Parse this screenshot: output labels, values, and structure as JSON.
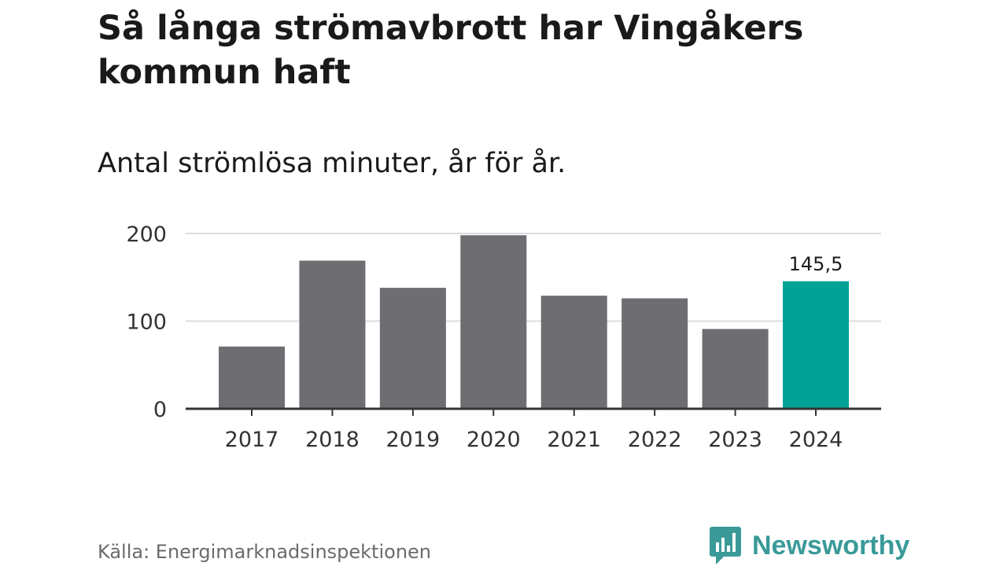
{
  "header": {
    "title": "Så långa strömavbrott har Vingåkers kommun haft",
    "subtitle": "Antal strömlösa minuter, år för år."
  },
  "footer": {
    "source": "Källa: Energimarknadsinspektionen",
    "brand_name": "Newsworthy",
    "brand_icon": "bar-chart-logo-icon",
    "brand_color": "#3a9a98"
  },
  "chart_data": {
    "type": "bar",
    "title": "Så långa strömavbrott har Vingåkers kommun haft",
    "subtitle": "Antal strömlösa minuter, år för år.",
    "categories": [
      "2017",
      "2018",
      "2019",
      "2020",
      "2021",
      "2022",
      "2023",
      "2024"
    ],
    "values": [
      71,
      169,
      138,
      198,
      129,
      126,
      91,
      145.5
    ],
    "data_labels": [
      null,
      null,
      null,
      null,
      null,
      null,
      null,
      "145,5"
    ],
    "ylim": [
      0,
      200
    ],
    "yticks": [
      0,
      100,
      200
    ],
    "ytick_labels": [
      "0",
      "100",
      "200"
    ],
    "grid": true,
    "bar_color": "#6e6d72",
    "highlight_color": "#00a297",
    "highlight_index": 7,
    "source": "Källa: Energimarknadsinspektionen"
  }
}
